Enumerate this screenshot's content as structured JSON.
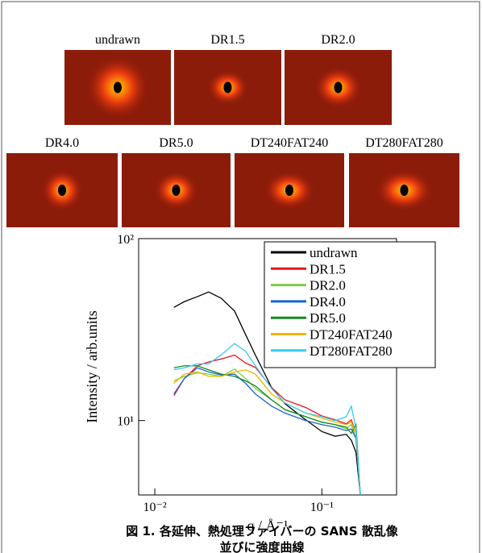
{
  "images": [
    "undrawn",
    "DR1.5",
    "DR2.0",
    "DR4.0",
    "DR5.0",
    "DT240FAT240",
    "DT280FAT280"
  ],
  "chart_data": {
    "type": "line",
    "x_label": "q / Å⁻¹",
    "y_label": "Intensity / arb.units",
    "log_x": true,
    "log_y": true,
    "legend": "upper right",
    "x": [
      0.013,
      0.015,
      0.018,
      0.021,
      0.025,
      0.03,
      0.035,
      0.04,
      0.05,
      0.06,
      0.08,
      0.1,
      0.12,
      0.14,
      0.15,
      0.16,
      0.17
    ],
    "series": [
      {
        "name": "undrawn",
        "color": "#000000",
        "values": [
          41.9,
          45,
          48,
          50.9,
          47,
          40,
          29.6,
          22.9,
          15.2,
          12.4,
          10.1,
          8.7,
          8.2,
          8.4,
          7.8,
          6.7,
          3.9
        ]
      },
      {
        "name": "DR1.5",
        "color": "#e8141e",
        "values": [
          13.7,
          17,
          20,
          21,
          21.8,
          22.9,
          20.7,
          19.6,
          15.2,
          13,
          11.8,
          10.6,
          10.1,
          9.6,
          10.1,
          8.5,
          3.9
        ]
      },
      {
        "name": "DR2.0",
        "color": "#7ccc44",
        "values": [
          16.5,
          17.5,
          18.3,
          18,
          17.5,
          19.2,
          17,
          15,
          13,
          11.5,
          10.5,
          9.8,
          9.5,
          9,
          9.5,
          8,
          3.9
        ]
      },
      {
        "name": "DR4.0",
        "color": "#1a64d8",
        "values": [
          14,
          17,
          19.5,
          18.5,
          17.8,
          18,
          16,
          14,
          12,
          11,
          10,
          9.5,
          9.2,
          8.8,
          9,
          8,
          3.9
        ]
      },
      {
        "name": "DR5.0",
        "color": "#128a1c",
        "values": [
          19.5,
          20,
          20,
          19,
          18,
          17.5,
          16.5,
          15.5,
          13,
          11.5,
          10.5,
          9.8,
          9.5,
          9.2,
          8.5,
          9.5,
          3.9
        ]
      },
      {
        "name": "DT240FAT240",
        "color": "#f0b400",
        "values": [
          16,
          18,
          18.5,
          17.5,
          17.5,
          18.5,
          19,
          18,
          14,
          12.5,
          11,
          10.3,
          9.8,
          9.5,
          9.8,
          8.5,
          3.9
        ]
      },
      {
        "name": "DT280FAT280",
        "color": "#33ccf5",
        "values": [
          19,
          19.5,
          20.5,
          20.5,
          23,
          26.5,
          24,
          20,
          15,
          12.5,
          11,
          10.5,
          10,
          10.5,
          12,
          9,
          3.9
        ]
      }
    ],
    "xlim": [
      0.008,
      0.28
    ],
    "ylim": [
      3.9,
      100
    ],
    "xticks": [
      {
        "value": 0.01,
        "label": "10⁻²"
      },
      {
        "value": 0.1,
        "label": "10⁻¹"
      }
    ],
    "yticks": [
      {
        "value": 10,
        "label": "10¹"
      },
      {
        "value": 100,
        "label": "10²"
      }
    ]
  },
  "caption": [
    "図 1. 各延伸、熱処理ファイバーの SANS 散乱像",
    "並びに強度曲線"
  ]
}
